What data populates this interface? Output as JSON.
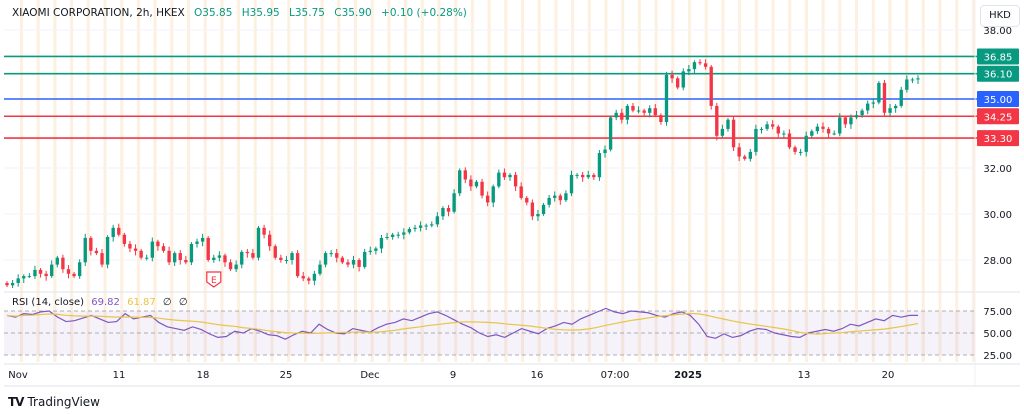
{
  "header": {
    "symbol": "XIAOMI CORPORATION, 2h, HKEX",
    "open": "O35.85",
    "high": "H35.95",
    "low": "L35.75",
    "close": "C35.90",
    "change": "+0.10 (+0.28%)"
  },
  "currency_button": "HKD",
  "rsi_legend": {
    "label": "RSI (14, close)",
    "rsi": "69.82",
    "ma": "61.87",
    "v1": "∅",
    "v2": "∅"
  },
  "brand": "TradingView",
  "colors": {
    "up": "#089981",
    "down": "#f23645",
    "blue": "#2962ff",
    "rsi": "#7e57c2",
    "rsi_ma": "#e8c547",
    "session": "#fde9d4"
  },
  "chart_data": [
    {
      "type": "candlestick",
      "title": "XIAOMI CORPORATION, 2h, HKEX",
      "ylabel": "HKD",
      "ylim": [
        26.5,
        38.2
      ],
      "yticks": [
        "38.00",
        "32.00",
        "30.00",
        "28.00"
      ],
      "yticks_values": [
        38,
        32,
        30,
        28
      ],
      "xticks": [
        "Nov",
        "11",
        "18",
        "25",
        "Dec",
        "9",
        "16",
        "07:00",
        "2025",
        "13",
        "20"
      ],
      "start_open": 27.0,
      "closes": [
        26.9,
        27.0,
        27.2,
        27.3,
        27.3,
        27.57,
        27.4,
        27.3,
        27.8,
        28.1,
        27.6,
        27.4,
        27.3,
        27.9,
        28.96,
        28.4,
        28.3,
        27.8,
        29.0,
        29.4,
        29.1,
        28.7,
        28.5,
        28.4,
        28.1,
        28.1,
        28.8,
        28.6,
        28.4,
        27.9,
        28.3,
        28.0,
        27.9,
        28.7,
        28.8,
        28.96,
        28.0,
        28.1,
        28.2,
        27.9,
        27.6,
        27.8,
        28.35,
        28.3,
        28.1,
        29.4,
        29.1,
        28.6,
        28.1,
        28.0,
        28.0,
        28.3,
        27.3,
        27.2,
        27.1,
        27.4,
        27.8,
        28.3,
        28.3,
        28.1,
        27.9,
        27.8,
        28.0,
        27.7,
        28.35,
        28.4,
        28.5,
        28.96,
        29.0,
        29.1,
        29.1,
        29.2,
        29.35,
        29.4,
        29.5,
        29.5,
        29.55,
        29.9,
        30.26,
        30.1,
        30.9,
        31.9,
        31.5,
        31.2,
        31.4,
        30.8,
        30.5,
        31.2,
        31.8,
        31.6,
        31.7,
        31.2,
        30.7,
        30.5,
        29.9,
        30.0,
        30.4,
        30.7,
        30.8,
        30.6,
        30.9,
        31.7,
        31.7,
        31.6,
        31.7,
        31.6,
        32.65,
        32.8,
        34.2,
        34.4,
        34.1,
        34.7,
        34.5,
        34.5,
        34.4,
        34.6,
        34.3,
        34.0,
        36.05,
        35.9,
        35.5,
        36.2,
        36.3,
        36.6,
        36.55,
        36.4,
        34.7,
        33.4,
        33.7,
        34.1,
        32.9,
        32.5,
        32.4,
        32.7,
        33.7,
        33.7,
        33.9,
        33.8,
        33.5,
        33.5,
        32.9,
        32.7,
        32.7,
        33.4,
        33.6,
        33.8,
        33.7,
        33.5,
        33.5,
        34.2,
        33.9,
        34.2,
        34.3,
        34.5,
        34.8,
        34.85,
        35.7,
        34.4,
        34.6,
        34.7,
        35.4,
        35.85,
        35.85,
        35.9
      ],
      "levels": [
        {
          "value": 36.85,
          "label": "36.85",
          "color": "#089981"
        },
        {
          "value": 36.1,
          "label": "36.10",
          "color": "#089981"
        },
        {
          "value": 35.0,
          "label": "35.00",
          "color": "#2962ff"
        },
        {
          "value": 34.25,
          "label": "34.25",
          "color": "#f23645"
        },
        {
          "value": 33.3,
          "label": "33.30",
          "color": "#f23645"
        }
      ],
      "annotations": [
        {
          "label": "E",
          "candle_index": 37,
          "meaning": "earnings"
        }
      ]
    },
    {
      "type": "line",
      "title": "RSI (14, close)",
      "ylim": [
        20,
        82
      ],
      "yticks": [
        "75.00",
        "50.00",
        "25.00"
      ],
      "yticks_values": [
        75,
        50,
        25
      ],
      "band": [
        25,
        75
      ],
      "ma_period": 14,
      "rsi": [
        70,
        68,
        72,
        71,
        74,
        75,
        68,
        63,
        64,
        67,
        70,
        66,
        62,
        63,
        72,
        66,
        68,
        70,
        62,
        57,
        55,
        53,
        57,
        54,
        49,
        45,
        46,
        52,
        50,
        55,
        52,
        48,
        47,
        43,
        48,
        52,
        50,
        60,
        54,
        50,
        49,
        55,
        53,
        51,
        56,
        60,
        62,
        66,
        64,
        68,
        72,
        74,
        70,
        65,
        60,
        56,
        50,
        46,
        48,
        45,
        50,
        55,
        52,
        49,
        55,
        58,
        62,
        60,
        66,
        70,
        74,
        78,
        74,
        72,
        75,
        74,
        73,
        70,
        68,
        72,
        74,
        70,
        60,
        46,
        44,
        49,
        45,
        47,
        52,
        55,
        54,
        50,
        48,
        46,
        45,
        50,
        52,
        54,
        52,
        55,
        60,
        58,
        62,
        66,
        64,
        70,
        68,
        70,
        70
      ]
    }
  ]
}
